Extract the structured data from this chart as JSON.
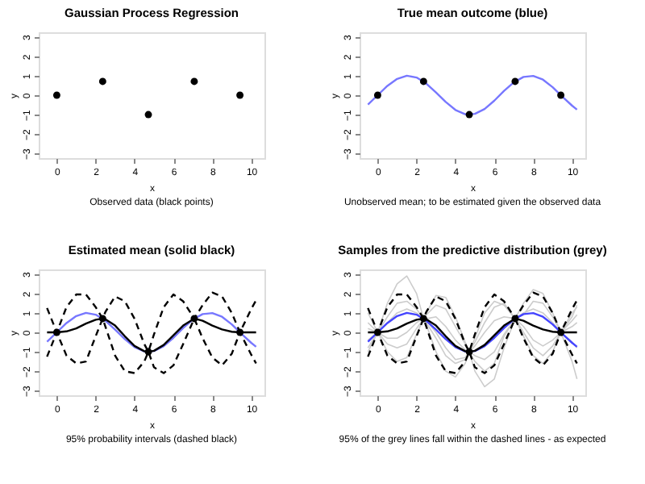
{
  "chart_data": [
    {
      "type": "scatter",
      "title": "Gaussian Process Regression",
      "xlabel": "x",
      "ylabel": "y",
      "annotations": [
        "Observed data (black points)"
      ],
      "xlim": [
        -0.93,
        10.68
      ],
      "ylim": [
        -3.24,
        3.24
      ],
      "xticks": [
        0,
        2,
        4,
        6,
        8,
        10
      ],
      "yticks": [
        -3,
        -2,
        -1,
        0,
        1,
        2,
        3
      ],
      "grid": false,
      "series": [
        {
          "color": "#000000",
          "marker": "circle",
          "x": [
            0,
            2.36,
            4.71,
            7.07,
            9.42
          ],
          "values": [
            0,
            0.71,
            -1,
            0.71,
            0
          ]
        }
      ]
    },
    {
      "type": "line",
      "title": "True mean outcome (blue)",
      "xlabel": "x",
      "ylabel": "y",
      "annotations": [
        "Unobserved mean; to be estimated given the observed data"
      ],
      "xlim": [
        -0.93,
        10.68
      ],
      "ylim": [
        -3.24,
        3.24
      ],
      "xticks": [
        0,
        2,
        4,
        6,
        8,
        10
      ],
      "yticks": [
        -3,
        -2,
        -1,
        0,
        1,
        2,
        3
      ],
      "grid": false,
      "series": [
        {
          "type": "line",
          "color": "#7777ff",
          "line_style": "solid",
          "x": [
            -0.5,
            0,
            0.5,
            1,
            1.5,
            2,
            2.5,
            3,
            3.5,
            4,
            4.5,
            5,
            5.5,
            6,
            6.5,
            7,
            7.5,
            8,
            8.5,
            9,
            9.5,
            10,
            10.25
          ],
          "values": [
            -0.48,
            0,
            0.48,
            0.84,
            1.0,
            0.91,
            0.6,
            0.14,
            -0.35,
            -0.76,
            -0.98,
            -0.96,
            -0.71,
            -0.28,
            0.22,
            0.66,
            0.94,
            0.99,
            0.8,
            0.41,
            -0.08,
            -0.54,
            -0.74
          ]
        },
        {
          "type": "scatter",
          "color": "#000000",
          "marker": "circle",
          "x": [
            0,
            2.36,
            4.71,
            7.07,
            9.42
          ],
          "values": [
            0,
            0.71,
            -1,
            0.71,
            0
          ]
        }
      ]
    },
    {
      "type": "line",
      "title": "Estimated mean (solid black)",
      "xlabel": "x",
      "ylabel": "y",
      "annotations": [
        "95% probability intervals (dashed black)"
      ],
      "xlim": [
        -0.93,
        10.68
      ],
      "ylim": [
        -3.24,
        3.24
      ],
      "xticks": [
        0,
        2,
        4,
        6,
        8,
        10
      ],
      "yticks": [
        -3,
        -2,
        -1,
        0,
        1,
        2,
        3
      ],
      "grid": false,
      "series": [
        {
          "type": "line",
          "color": "#7777ff",
          "line_style": "solid",
          "x": [
            -0.5,
            0,
            0.5,
            1,
            1.5,
            2,
            2.5,
            3,
            3.5,
            4,
            4.5,
            5,
            5.5,
            6,
            6.5,
            7,
            7.5,
            8,
            8.5,
            9,
            9.5,
            10,
            10.25
          ],
          "values": [
            -0.48,
            0,
            0.48,
            0.84,
            1.0,
            0.91,
            0.6,
            0.14,
            -0.35,
            -0.76,
            -0.98,
            -0.96,
            -0.71,
            -0.28,
            0.22,
            0.66,
            0.94,
            0.99,
            0.8,
            0.41,
            -0.08,
            -0.54,
            -0.74
          ]
        },
        {
          "type": "line",
          "color": "#000000",
          "line_style": "dashed",
          "x": [
            -0.5,
            0,
            0.5,
            1,
            1.5,
            2,
            2.36,
            2.5,
            3,
            3.5,
            4,
            4.5,
            4.71,
            5,
            5.5,
            6,
            6.5,
            7.07,
            7.5,
            8,
            8.5,
            9,
            9.42,
            10,
            10.25
          ],
          "values": [
            1.25,
            0,
            1.3,
            1.95,
            1.95,
            1.3,
            0.71,
            1.05,
            1.85,
            1.6,
            0.7,
            -0.6,
            -1,
            -0.1,
            1.3,
            1.95,
            1.6,
            0.71,
            1.4,
            2.05,
            1.85,
            1.0,
            0,
            1.2,
            1.65
          ]
        },
        {
          "type": "line",
          "color": "#000000",
          "line_style": "dashed",
          "x": [
            -0.5,
            0,
            0.5,
            1,
            1.5,
            2,
            2.36,
            2.5,
            3,
            3.5,
            4,
            4.5,
            4.71,
            5,
            5.5,
            6,
            6.5,
            7.07,
            7.5,
            8,
            8.5,
            9,
            9.42,
            10,
            10.25
          ],
          "values": [
            -1.25,
            0,
            -1.2,
            -1.6,
            -1.5,
            -0.2,
            0.71,
            0.3,
            -1.2,
            -2.0,
            -2.1,
            -1.5,
            -1,
            -1.8,
            -2.1,
            -1.7,
            -0.6,
            0.71,
            -0.3,
            -1.3,
            -1.7,
            -1.1,
            0,
            -1.15,
            -1.6
          ]
        },
        {
          "type": "line",
          "color": "#000000",
          "line_style": "solid",
          "x": [
            -0.5,
            0,
            0.5,
            1,
            1.5,
            2,
            2.36,
            2.5,
            3,
            3.5,
            4,
            4.5,
            4.71,
            5,
            5.5,
            6,
            6.5,
            7.07,
            7.5,
            8,
            8.5,
            9,
            9.42,
            10,
            10.25
          ],
          "values": [
            0,
            0,
            0.05,
            0.2,
            0.45,
            0.65,
            0.71,
            0.68,
            0.35,
            -0.2,
            -0.7,
            -0.97,
            -1,
            -0.95,
            -0.65,
            -0.15,
            0.35,
            0.71,
            0.6,
            0.35,
            0.15,
            0.03,
            0,
            0,
            0
          ]
        },
        {
          "type": "scatter",
          "color": "#000000",
          "marker": "circle",
          "x": [
            0,
            2.36,
            4.71,
            7.07,
            9.42
          ],
          "values": [
            0,
            0.71,
            -1,
            0.71,
            0
          ]
        }
      ]
    },
    {
      "type": "line",
      "title": "Samples from the predictive distribution (grey)",
      "xlabel": "x",
      "ylabel": "y",
      "annotations": [
        "95% of the grey lines fall within the dashed lines - as expected"
      ],
      "xlim": [
        -0.93,
        10.68
      ],
      "ylim": [
        -3.24,
        3.24
      ],
      "xticks": [
        0,
        2,
        4,
        6,
        8,
        10
      ],
      "yticks": [
        -3,
        -2,
        -1,
        0,
        1,
        2,
        3
      ],
      "grid": false,
      "series": [
        {
          "type": "line",
          "color": "#cccccc",
          "line_style": "solid",
          "x": [
            -0.5,
            0,
            0.5,
            1,
            1.5,
            2,
            2.36,
            2.5,
            3,
            3.5,
            4,
            4.5,
            4.71,
            5,
            5.5,
            6,
            6.5,
            7.07,
            7.5,
            8,
            8.5,
            9,
            9.42,
            10,
            10.25
          ],
          "values": [
            1.0,
            0,
            1.5,
            2.5,
            2.9,
            2.0,
            0.71,
            1.0,
            1.9,
            1.8,
            0.8,
            -0.5,
            -1,
            -0.3,
            1.0,
            1.6,
            1.4,
            0.71,
            1.5,
            2.2,
            2.0,
            1.0,
            0,
            1.0,
            1.3
          ]
        },
        {
          "type": "line",
          "color": "#cccccc",
          "line_style": "solid",
          "x": [
            -0.5,
            0,
            0.5,
            1,
            1.5,
            2,
            2.36,
            2.5,
            3,
            3.5,
            4,
            4.5,
            4.71,
            5,
            5.5,
            6,
            6.5,
            7.07,
            7.5,
            8,
            8.5,
            9,
            9.42,
            10,
            10.25
          ],
          "values": [
            -1.0,
            0,
            -1.0,
            -1.5,
            -1.3,
            -0.1,
            0.71,
            0.4,
            -1.0,
            -2.0,
            -2.3,
            -1.6,
            -1,
            -2.0,
            -2.8,
            -2.4,
            -0.8,
            0.71,
            -0.2,
            -1.2,
            -1.6,
            -1.0,
            0,
            -1.5,
            -2.4
          ]
        },
        {
          "type": "line",
          "color": "#cccccc",
          "line_style": "solid",
          "x": [
            -0.5,
            0,
            0.5,
            1,
            1.5,
            2,
            2.36,
            2.5,
            3,
            3.5,
            4,
            4.5,
            4.71,
            5,
            5.5,
            6,
            6.5,
            7.07,
            7.5,
            8,
            8.5,
            9,
            9.42,
            10,
            10.25
          ],
          "values": [
            0.5,
            0,
            0.5,
            1.0,
            1.2,
            1.0,
            0.71,
            0.7,
            0.8,
            0.3,
            -0.4,
            -0.9,
            -1,
            -0.7,
            0.0,
            0.6,
            0.8,
            0.71,
            1.0,
            1.2,
            1.0,
            0.5,
            0,
            0.6,
            0.9
          ]
        },
        {
          "type": "line",
          "color": "#cccccc",
          "line_style": "solid",
          "x": [
            -0.5,
            0,
            0.5,
            1,
            1.5,
            2,
            2.36,
            2.5,
            3,
            3.5,
            4,
            4.5,
            4.71,
            5,
            5.5,
            6,
            6.5,
            7.07,
            7.5,
            8,
            8.5,
            9,
            9.42,
            10,
            10.25
          ],
          "values": [
            -0.4,
            0,
            -0.3,
            -0.3,
            0.0,
            0.5,
            0.71,
            0.6,
            0.0,
            -0.8,
            -1.4,
            -1.3,
            -1,
            -1.2,
            -1.4,
            -1.0,
            -0.1,
            0.71,
            0.3,
            -0.4,
            -0.7,
            -0.4,
            0,
            -0.5,
            -0.8
          ]
        },
        {
          "type": "line",
          "color": "#cccccc",
          "line_style": "solid",
          "x": [
            -0.5,
            0,
            0.5,
            1,
            1.5,
            2,
            2.36,
            2.5,
            3,
            3.5,
            4,
            4.5,
            4.71,
            5,
            5.5,
            6,
            6.5,
            7.07,
            7.5,
            8,
            8.5,
            9,
            9.42,
            10,
            10.25
          ],
          "values": [
            0.2,
            0,
            0.8,
            1.5,
            1.6,
            1.2,
            0.71,
            0.5,
            -0.3,
            -1.2,
            -1.6,
            -1.4,
            -1,
            -0.5,
            0.5,
            1.3,
            1.5,
            0.71,
            0.9,
            1.6,
            1.5,
            0.8,
            0,
            0.3,
            0.5
          ]
        },
        {
          "type": "line",
          "color": "#cccccc",
          "line_style": "solid",
          "x": [
            -0.5,
            0,
            0.5,
            1,
            1.5,
            2,
            2.36,
            2.5,
            3,
            3.5,
            4,
            4.5,
            4.71,
            5,
            5.5,
            6,
            6.5,
            7.07,
            7.5,
            8,
            8.5,
            9,
            9.42,
            10,
            10.25
          ],
          "values": [
            -0.8,
            0,
            -0.6,
            -0.8,
            -0.6,
            0.2,
            0.71,
            0.9,
            1.4,
            1.2,
            0.3,
            -0.6,
            -1,
            -1.5,
            -2.0,
            -1.6,
            -0.2,
            0.71,
            0.0,
            -0.8,
            -1.2,
            -0.7,
            0,
            0.8,
            1.4
          ]
        },
        {
          "type": "line",
          "color": "#4444ff",
          "line_style": "solid",
          "x": [
            -0.5,
            0,
            0.5,
            1,
            1.5,
            2,
            2.5,
            3,
            3.5,
            4,
            4.5,
            5,
            5.5,
            6,
            6.5,
            7,
            7.5,
            8,
            8.5,
            9,
            9.5,
            10,
            10.25
          ],
          "values": [
            -0.48,
            0,
            0.48,
            0.84,
            1.0,
            0.91,
            0.6,
            0.14,
            -0.35,
            -0.76,
            -0.98,
            -0.96,
            -0.71,
            -0.28,
            0.22,
            0.66,
            0.94,
            0.99,
            0.8,
            0.41,
            -0.08,
            -0.54,
            -0.74
          ]
        },
        {
          "type": "line",
          "color": "#000000",
          "line_style": "dashed",
          "x": [
            -0.5,
            0,
            0.5,
            1,
            1.5,
            2,
            2.36,
            2.5,
            3,
            3.5,
            4,
            4.5,
            4.71,
            5,
            5.5,
            6,
            6.5,
            7.07,
            7.5,
            8,
            8.5,
            9,
            9.42,
            10,
            10.25
          ],
          "values": [
            1.25,
            0,
            1.3,
            1.95,
            1.95,
            1.3,
            0.71,
            1.05,
            1.85,
            1.6,
            0.7,
            -0.6,
            -1,
            -0.1,
            1.3,
            1.95,
            1.6,
            0.71,
            1.4,
            2.05,
            1.85,
            1.0,
            0,
            1.2,
            1.65
          ]
        },
        {
          "type": "line",
          "color": "#000000",
          "line_style": "dashed",
          "x": [
            -0.5,
            0,
            0.5,
            1,
            1.5,
            2,
            2.36,
            2.5,
            3,
            3.5,
            4,
            4.5,
            4.71,
            5,
            5.5,
            6,
            6.5,
            7.07,
            7.5,
            8,
            8.5,
            9,
            9.42,
            10,
            10.25
          ],
          "values": [
            -1.25,
            0,
            -1.2,
            -1.6,
            -1.5,
            -0.2,
            0.71,
            0.3,
            -1.2,
            -2.0,
            -2.1,
            -1.5,
            -1,
            -1.8,
            -2.1,
            -1.7,
            -0.6,
            0.71,
            -0.3,
            -1.3,
            -1.7,
            -1.1,
            0,
            -1.15,
            -1.6
          ]
        },
        {
          "type": "line",
          "color": "#000000",
          "line_style": "solid",
          "x": [
            -0.5,
            0,
            0.5,
            1,
            1.5,
            2,
            2.36,
            2.5,
            3,
            3.5,
            4,
            4.5,
            4.71,
            5,
            5.5,
            6,
            6.5,
            7.07,
            7.5,
            8,
            8.5,
            9,
            9.42,
            10,
            10.25
          ],
          "values": [
            0,
            0,
            0.05,
            0.2,
            0.45,
            0.65,
            0.71,
            0.68,
            0.35,
            -0.2,
            -0.7,
            -0.97,
            -1,
            -0.95,
            -0.65,
            -0.15,
            0.35,
            0.71,
            0.6,
            0.35,
            0.15,
            0.03,
            0,
            0,
            0
          ]
        },
        {
          "type": "scatter",
          "color": "#000000",
          "marker": "circle",
          "x": [
            0,
            2.36,
            4.71,
            7.07,
            9.42
          ],
          "values": [
            0,
            0.71,
            -1,
            0.71,
            0
          ]
        }
      ]
    }
  ]
}
